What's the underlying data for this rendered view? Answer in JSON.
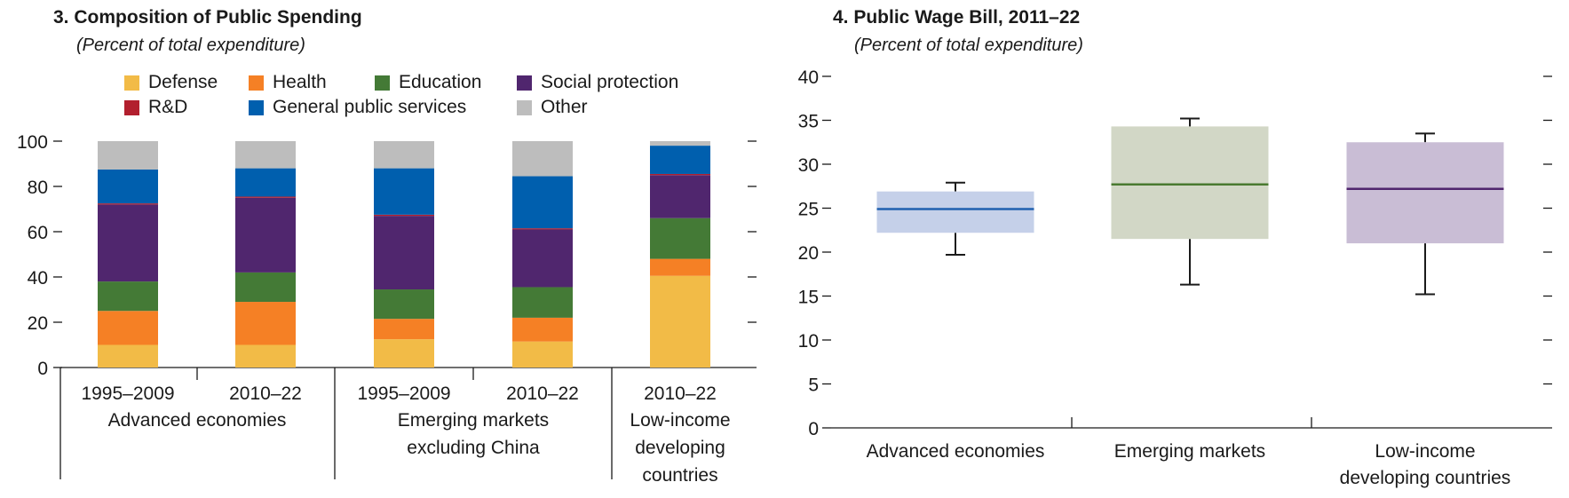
{
  "panel3": {
    "title": "3. Composition of Public Spending",
    "subtitle": "(Percent of total expenditure)"
  },
  "panel4": {
    "title": "4. Public Wage Bill, 2011–22",
    "subtitle": "(Percent of total expenditure)"
  },
  "colors": {
    "Defense": "#f2bb47",
    "Health": "#f58025",
    "Education": "#447a36",
    "Social protection": "#50266e",
    "R&D": "#b21f2e",
    "General public services": "#005fae",
    "Other": "#bdbdbd",
    "box_fill": [
      "#c5d0e9",
      "#d2d7c6",
      "#c9bdd5"
    ],
    "box_median": [
      "#2060b0",
      "#4a7a30",
      "#50266e"
    ]
  },
  "chart_data": [
    {
      "type": "bar",
      "stacked": true,
      "title": "3. Composition of Public Spending",
      "subtitle": "(Percent of total expenditure)",
      "ylim": [
        0,
        100
      ],
      "yticks": [
        0,
        20,
        40,
        60,
        80,
        100
      ],
      "legend": [
        "Defense",
        "Health",
        "Education",
        "Social protection",
        "R&D",
        "General public services",
        "Other"
      ],
      "groups": [
        {
          "label": "Advanced economies",
          "label_lines": [
            "Advanced economies"
          ],
          "categories": [
            "1995–2009",
            "2010–22"
          ]
        },
        {
          "label": "Emerging markets excluding China",
          "label_lines": [
            "Emerging markets",
            "excluding China"
          ],
          "categories": [
            "1995–2009",
            "2010–22"
          ]
        },
        {
          "label": "Low-income developing countries",
          "label_lines": [
            "Low-income",
            "developing",
            "countries"
          ],
          "categories": [
            "2010–22"
          ]
        }
      ],
      "categories": [
        "1995–2009",
        "2010–22",
        "1995–2009",
        "2010–22",
        "2010–22"
      ],
      "series": [
        {
          "name": "Defense",
          "values": [
            10,
            10,
            12.5,
            11.5,
            40.5
          ]
        },
        {
          "name": "Health",
          "values": [
            15,
            19,
            9,
            10.5,
            7.5
          ]
        },
        {
          "name": "Education",
          "values": [
            13,
            13,
            13,
            13.5,
            18
          ]
        },
        {
          "name": "Social protection",
          "values": [
            34,
            33,
            32.5,
            25.5,
            19
          ]
        },
        {
          "name": "R&D",
          "values": [
            0.5,
            0.5,
            0.5,
            0.5,
            0.5
          ]
        },
        {
          "name": "General public services",
          "values": [
            15,
            12.5,
            20.5,
            23,
            12.5
          ]
        },
        {
          "name": "Other",
          "values": [
            12.5,
            12,
            12,
            15.5,
            2
          ]
        }
      ]
    },
    {
      "type": "box",
      "title": "4. Public Wage Bill, 2011–22",
      "subtitle": "(Percent of total expenditure)",
      "ylim": [
        0,
        40
      ],
      "yticks": [
        0,
        5,
        10,
        15,
        20,
        25,
        30,
        35,
        40
      ],
      "categories": [
        "Advanced economies",
        "Emerging markets",
        "Low-income developing countries"
      ],
      "category_lines": [
        [
          "Advanced economies"
        ],
        [
          "Emerging markets"
        ],
        [
          "Low-income",
          "developing countries"
        ]
      ],
      "boxes": [
        {
          "name": "Advanced economies",
          "min": 19.7,
          "q1": 22.2,
          "median": 24.9,
          "q3": 26.9,
          "max": 27.9
        },
        {
          "name": "Emerging markets",
          "min": 16.3,
          "q1": 21.5,
          "median": 27.7,
          "q3": 34.3,
          "max": 35.2
        },
        {
          "name": "Low-income developing countries",
          "min": 15.2,
          "q1": 21.0,
          "median": 27.2,
          "q3": 32.5,
          "max": 33.5
        }
      ]
    }
  ]
}
